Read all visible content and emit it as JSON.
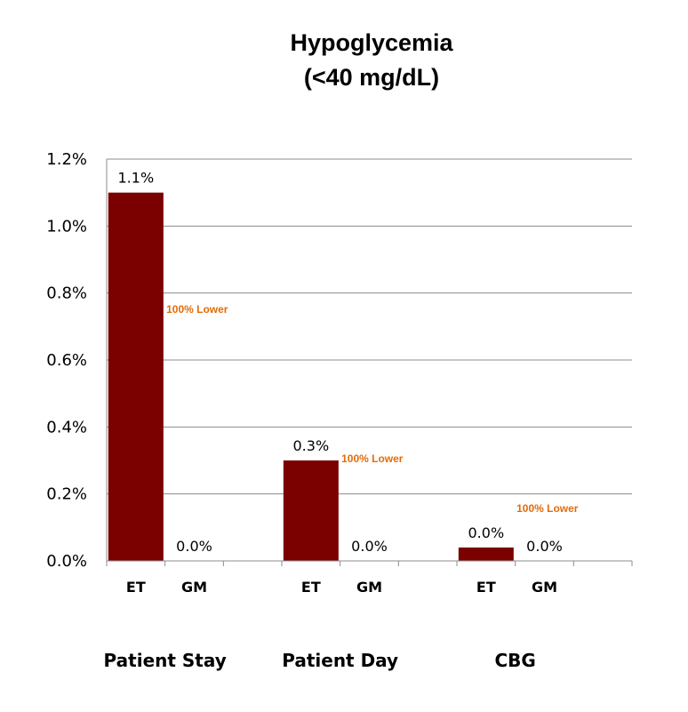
{
  "chart_data": {
    "type": "bar",
    "title_line1": "Hypoglycemia",
    "title_line2": "(<40 mg/dL)",
    "ylim": [
      0,
      1.2
    ],
    "yticks": [
      {
        "value": 0.0,
        "label": "0.0%"
      },
      {
        "value": 0.2,
        "label": "0.2%"
      },
      {
        "value": 0.4,
        "label": "0.4%"
      },
      {
        "value": 0.6,
        "label": "0.6%"
      },
      {
        "value": 0.8,
        "label": "0.8%"
      },
      {
        "value": 1.0,
        "label": "1.0%"
      },
      {
        "value": 1.2,
        "label": "1.2%"
      }
    ],
    "grid": true,
    "bar_color": "#7b0000",
    "note_color": "#e36c09",
    "groups": [
      {
        "name": "Patient Stay",
        "note": "100% Lower",
        "bars": [
          {
            "category": "ET",
            "value": 1.1,
            "label": "1.1%"
          },
          {
            "category": "GM",
            "value": 0.0,
            "label": "0.0%"
          }
        ]
      },
      {
        "name": "Patient Day",
        "note": "100% Lower",
        "bars": [
          {
            "category": "ET",
            "value": 0.3,
            "label": "0.3%"
          },
          {
            "category": "GM",
            "value": 0.0,
            "label": "0.0%"
          }
        ]
      },
      {
        "name": "CBG",
        "note": "100% Lower",
        "bars": [
          {
            "category": "ET",
            "value": 0.04,
            "label": "0.0%"
          },
          {
            "category": "GM",
            "value": 0.0,
            "label": "0.0%"
          }
        ]
      }
    ]
  }
}
